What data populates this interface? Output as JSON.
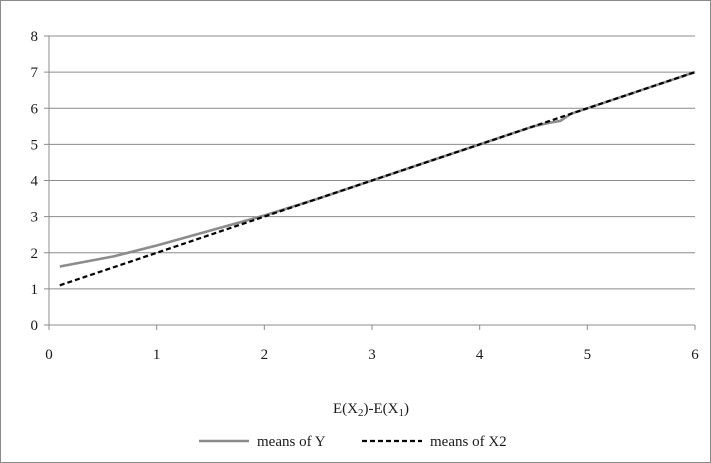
{
  "chart_data": {
    "type": "line",
    "title": "",
    "xlabel": "E(X2)-E(X1)",
    "xlabel_parts": [
      {
        "text": "E(X",
        "sub": false
      },
      {
        "text": "2",
        "sub": true
      },
      {
        "text": ")-E(X",
        "sub": false
      },
      {
        "text": "1",
        "sub": true
      },
      {
        "text": ")",
        "sub": false
      }
    ],
    "ylabel": "",
    "xlim": [
      0,
      6
    ],
    "ylim": [
      0,
      8
    ],
    "x_ticks": [
      "0",
      "1",
      "2",
      "3",
      "4",
      "5",
      "6"
    ],
    "y_ticks": [
      "0",
      "1",
      "2",
      "3",
      "4",
      "5",
      "6",
      "7",
      "8"
    ],
    "grid": "horizontal",
    "legend_position": "bottom",
    "series": [
      {
        "name": "means of Y",
        "style": "solid",
        "color": "#8c8c8c",
        "x": [
          0.1,
          0.6,
          1.0,
          1.3,
          1.6,
          2.0,
          2.5,
          3.0,
          3.5,
          4.0,
          4.5,
          4.65,
          4.75,
          4.85,
          5.0,
          5.5,
          6.0
        ],
        "y": [
          1.62,
          1.9,
          2.2,
          2.45,
          2.7,
          3.03,
          3.5,
          4.0,
          4.5,
          5.0,
          5.5,
          5.6,
          5.65,
          5.85,
          6.0,
          6.5,
          7.0
        ]
      },
      {
        "name": "means of X2",
        "style": "dashed",
        "color": "#000000",
        "x": [
          0.1,
          1.0,
          2.0,
          3.0,
          4.0,
          5.0,
          6.0
        ],
        "y": [
          1.1,
          2.0,
          3.0,
          4.0,
          5.0,
          6.0,
          7.0
        ]
      }
    ]
  }
}
